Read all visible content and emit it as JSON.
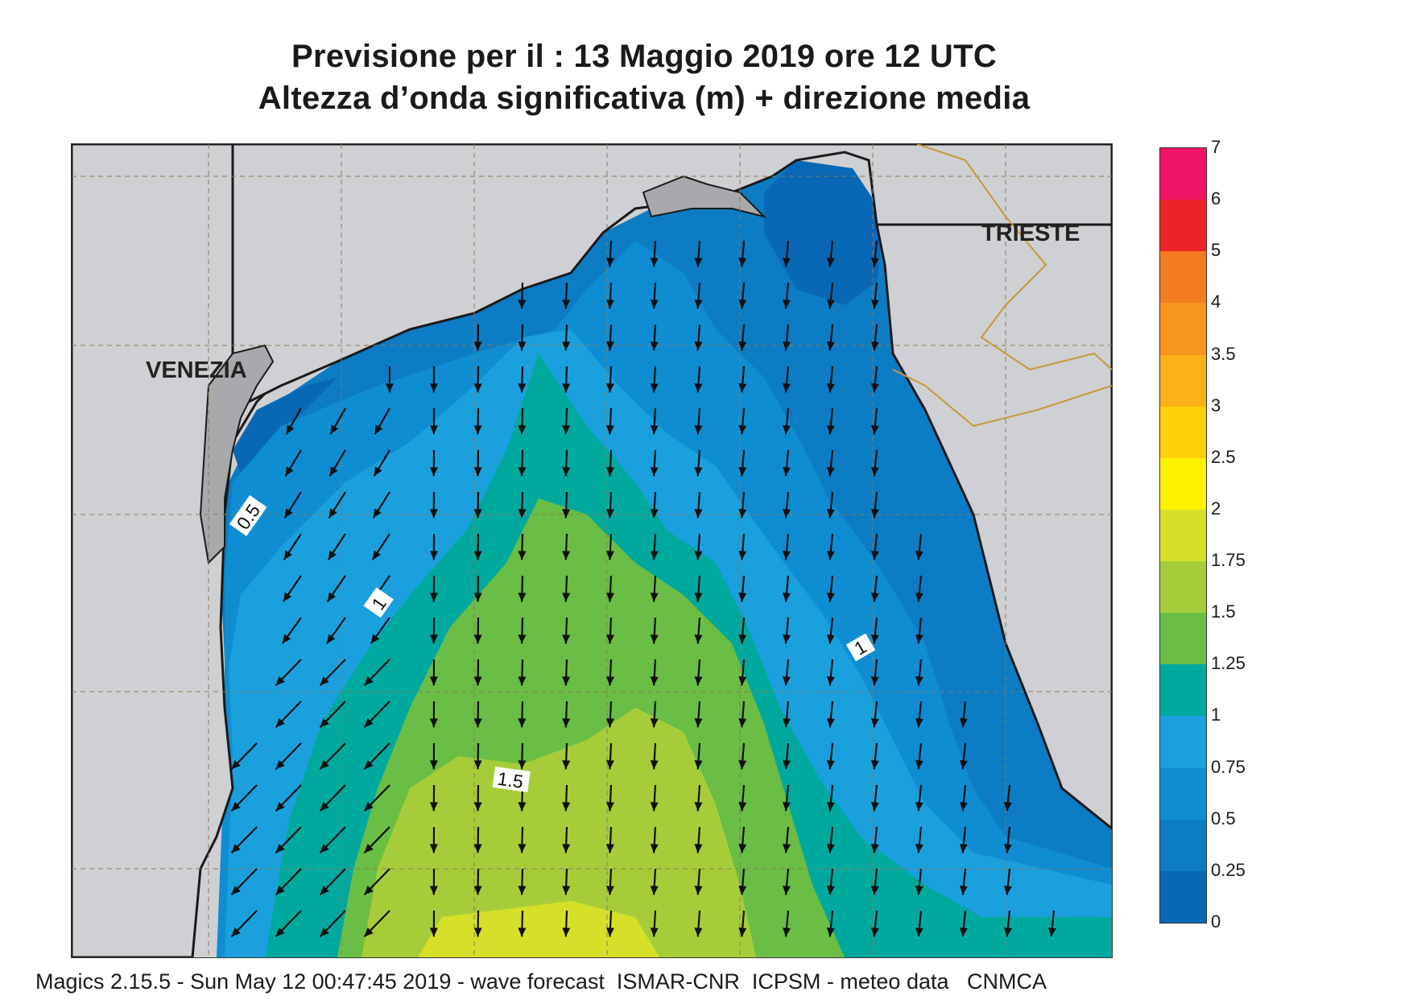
{
  "title_line1": "Previsione per il  :  13   Maggio  2019   ore 12 UTC",
  "title_line2": "Altezza d’onda significativa (m) + direzione media",
  "cities": {
    "venezia": "VENEZIA",
    "trieste": "TRIESTE"
  },
  "contour_labels": {
    "c05": "0.5",
    "c1a": "1",
    "c15": "1.5",
    "c1b": "1"
  },
  "legend": {
    "labels": [
      "7",
      "6",
      "5",
      "4",
      "3.5",
      "3",
      "2.5",
      "2",
      "1.75",
      "1.5",
      "1.25",
      "1",
      "0.75",
      "0.5",
      "0.25",
      "0"
    ],
    "colors": [
      "#ef1466",
      "#ec2427",
      "#f47c20",
      "#f7951e",
      "#fbb117",
      "#fed10a",
      "#fff200",
      "#d6e029",
      "#a6cd39",
      "#6abd45",
      "#00a99d",
      "#1ba0de",
      "#0f8dd3",
      "#0c7cc4",
      "#0868b5"
    ]
  },
  "footer": "Magics 2.15.5 - Sun May 12 00:47:45 2019 - wave forecast  ISMAR-CNR  ICPSM - meteo data   CNMCA"
}
